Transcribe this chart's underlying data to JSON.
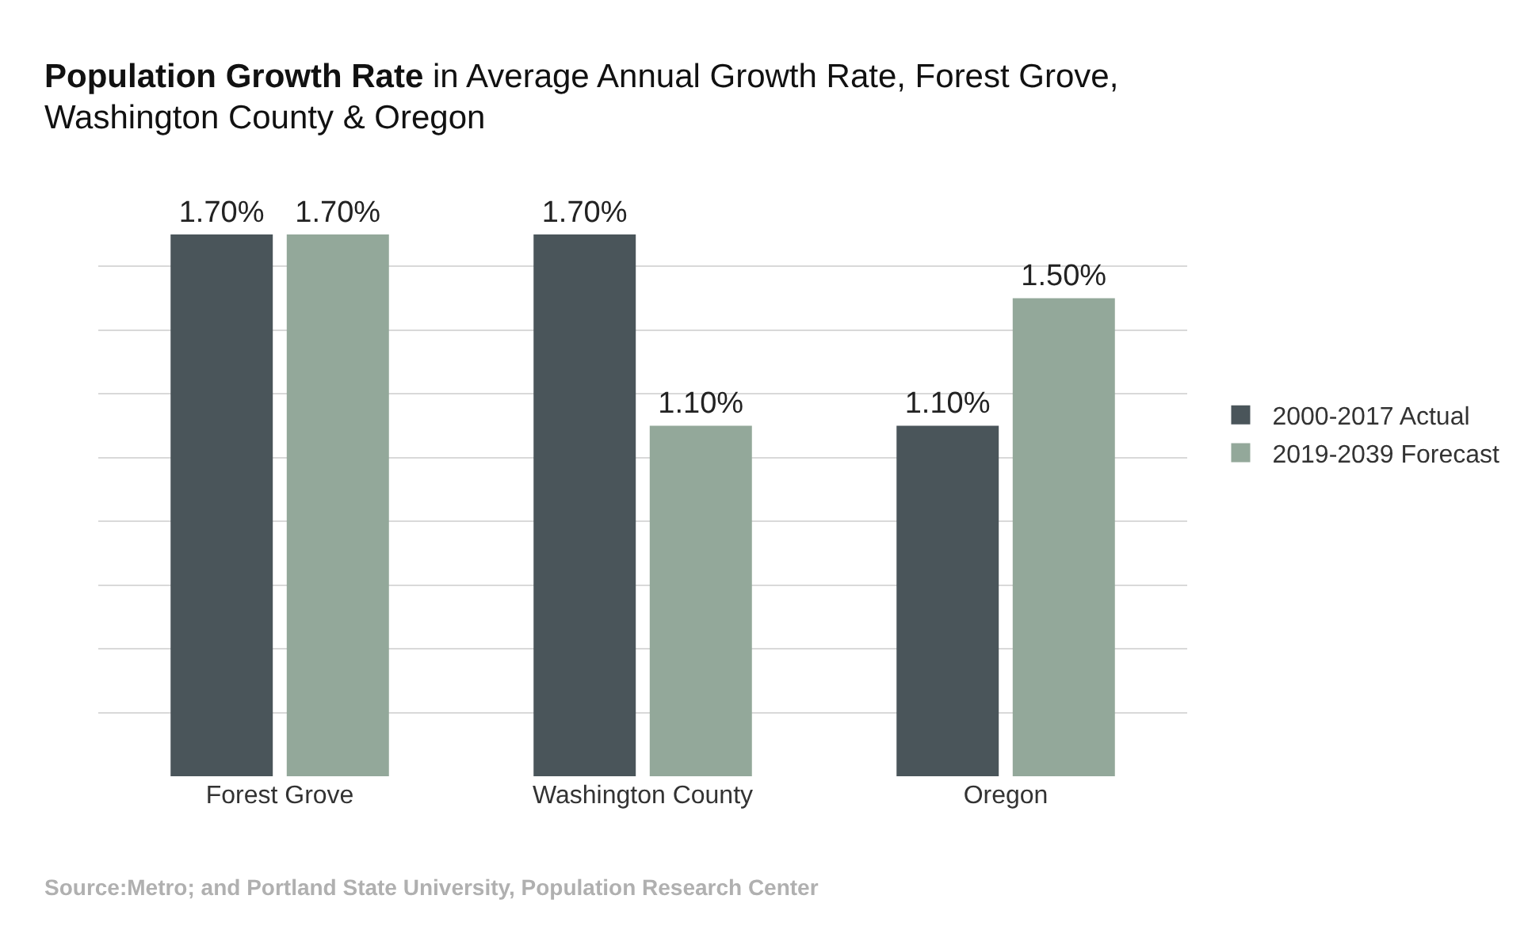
{
  "chart_data": {
    "type": "bar",
    "title": "Population Growth Rate",
    "subtitle": "in Average Annual Growth Rate, Forest Grove, Washington County & Oregon",
    "categories": [
      "Forest Grove",
      "Washington County",
      "Oregon"
    ],
    "series": [
      {
        "name": "2000-2017 Actual",
        "color": "#4a555a",
        "values": [
          1.7,
          1.7,
          1.1
        ],
        "value_labels": [
          "1.70%",
          "1.70%",
          "1.10%"
        ]
      },
      {
        "name": "2019-2039 Forecast",
        "color": "#93a89a",
        "values": [
          1.7,
          1.1,
          1.5
        ],
        "value_labels": [
          "1.70%",
          "1.10%",
          "1.50%"
        ]
      }
    ],
    "grid": "y",
    "tick_labels": "x",
    "legend": "right",
    "annotations": [
      "Source:Metro; and Portland State University, Population Research Center"
    ]
  }
}
